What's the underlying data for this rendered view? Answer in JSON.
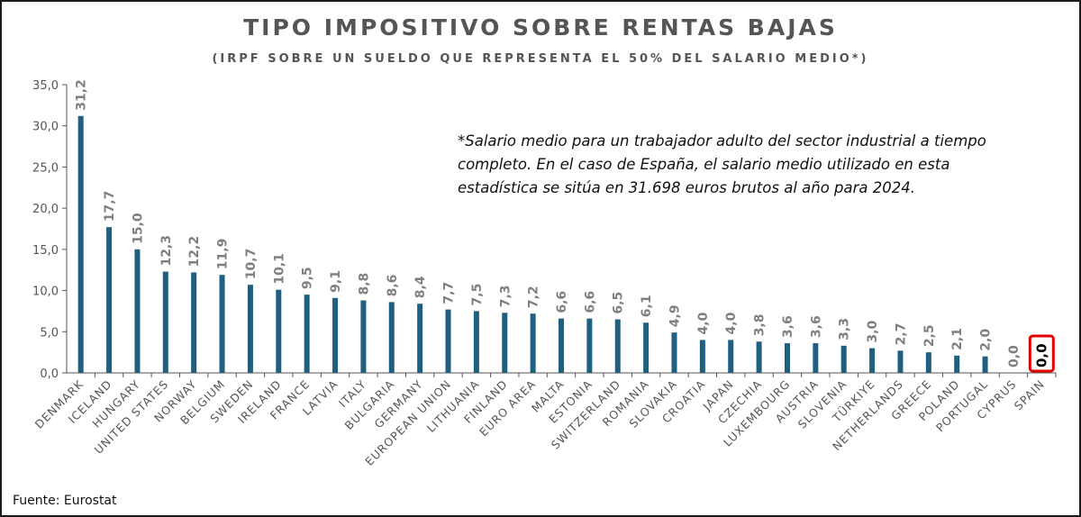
{
  "chart_data": {
    "type": "bar",
    "title": "TIPO IMPOSITIVO SOBRE RENTAS BAJAS",
    "subtitle": "(IRPF SOBRE UN SUELDO QUE REPRESENTA EL 50% DEL SALARIO MEDIO*)",
    "note": "*Salario medio para un trabajador adulto del sector industrial a tiempo completo. En el caso de España, el salario medio utilizado en esta estadística se sitúa en 31.698 euros brutos al año para 2024.",
    "source": "Fuente: Eurostat",
    "categories": [
      "DENMARK",
      "ICELAND",
      "HUNGARY",
      "UNITED STATES",
      "NORWAY",
      "BELGIUM",
      "SWEDEN",
      "IRELAND",
      "FRANCE",
      "LATVIA",
      "ITALY",
      "BULGARIA",
      "GERMANY",
      "EUROPEAN UNION",
      "LITHUANIA",
      "FINLAND",
      "EURO AREA",
      "MALTA",
      "ESTONIA",
      "SWITZERLAND",
      "ROMANIA",
      "SLOVAKIA",
      "CROATIA",
      "JAPAN",
      "CZECHIA",
      "LUXEMBOURG",
      "AUSTRIA",
      "SLOVENIA",
      "TÜRKIYE",
      "NETHERLANDS",
      "GREECE",
      "POLAND",
      "PORTUGAL",
      "CYPRUS",
      "SPAIN"
    ],
    "values": [
      31.2,
      17.7,
      15.0,
      12.3,
      12.2,
      11.9,
      10.7,
      10.1,
      9.5,
      9.1,
      8.8,
      8.6,
      8.4,
      7.7,
      7.5,
      7.3,
      7.2,
      6.6,
      6.6,
      6.5,
      6.1,
      4.9,
      4.0,
      4.0,
      3.8,
      3.6,
      3.6,
      3.3,
      3.0,
      2.7,
      2.5,
      2.1,
      2.0,
      0.0,
      0.0
    ],
    "value_labels": [
      "31,2",
      "17,7",
      "15,0",
      "12,3",
      "12,2",
      "11,9",
      "10,7",
      "10,1",
      "9,5",
      "9,1",
      "8,8",
      "8,6",
      "8,4",
      "7,7",
      "7,5",
      "7,3",
      "7,2",
      "6,6",
      "6,6",
      "6,5",
      "6,1",
      "4,9",
      "4,0",
      "4,0",
      "3,8",
      "3,6",
      "3,6",
      "3,3",
      "3,0",
      "2,7",
      "2,5",
      "2,1",
      "2,0",
      "0,0",
      "0,0"
    ],
    "y_ticks": [
      0,
      5,
      10,
      15,
      20,
      25,
      30,
      35
    ],
    "y_tick_labels": [
      "0,0",
      "5,0",
      "10,0",
      "15,0",
      "20,0",
      "25,0",
      "30,0",
      "35,0"
    ],
    "ylim": [
      0,
      35
    ],
    "highlight_category": "SPAIN",
    "grid": false,
    "legend": "none",
    "colors": {
      "bar": "#1f5f80",
      "highlight_box": "#e00000",
      "label": "#7f7f7f",
      "axis": "#555555"
    }
  }
}
